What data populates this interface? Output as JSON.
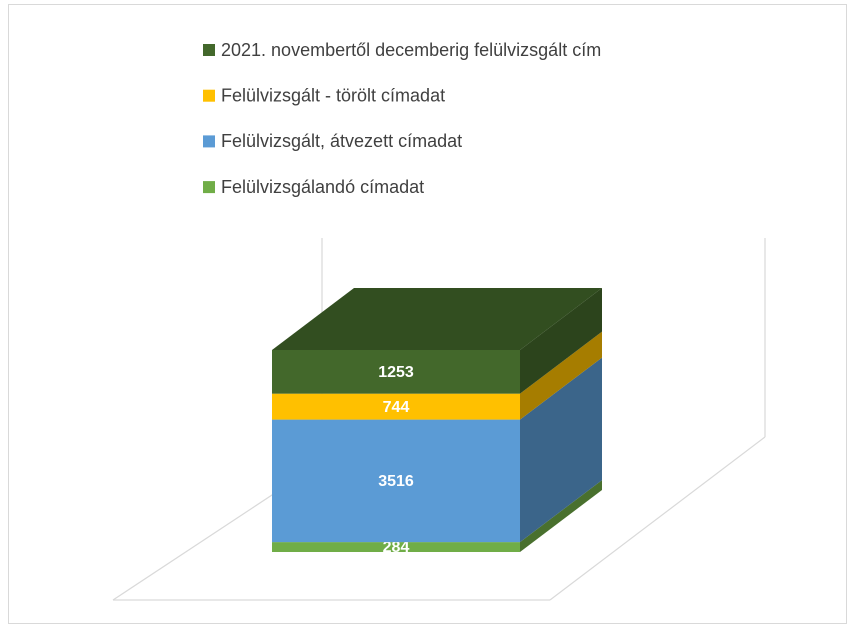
{
  "chart_data": {
    "type": "bar3d_stacked",
    "series": [
      {
        "name": "Felülvizsgálandó címadat",
        "color": "#70ad47",
        "values": [
          284
        ]
      },
      {
        "name": "Felülvizsgált, átvezett címadat",
        "color": "#5b9bd5",
        "values": [
          3516
        ]
      },
      {
        "name": "Felülvizsgált - törölt címadat",
        "color": "#ffc000",
        "values": [
          744
        ]
      },
      {
        "name": "2021. novembertől decemberig felülvizsgált cím",
        "color": "#43682b",
        "values": [
          1253
        ]
      }
    ]
  }
}
